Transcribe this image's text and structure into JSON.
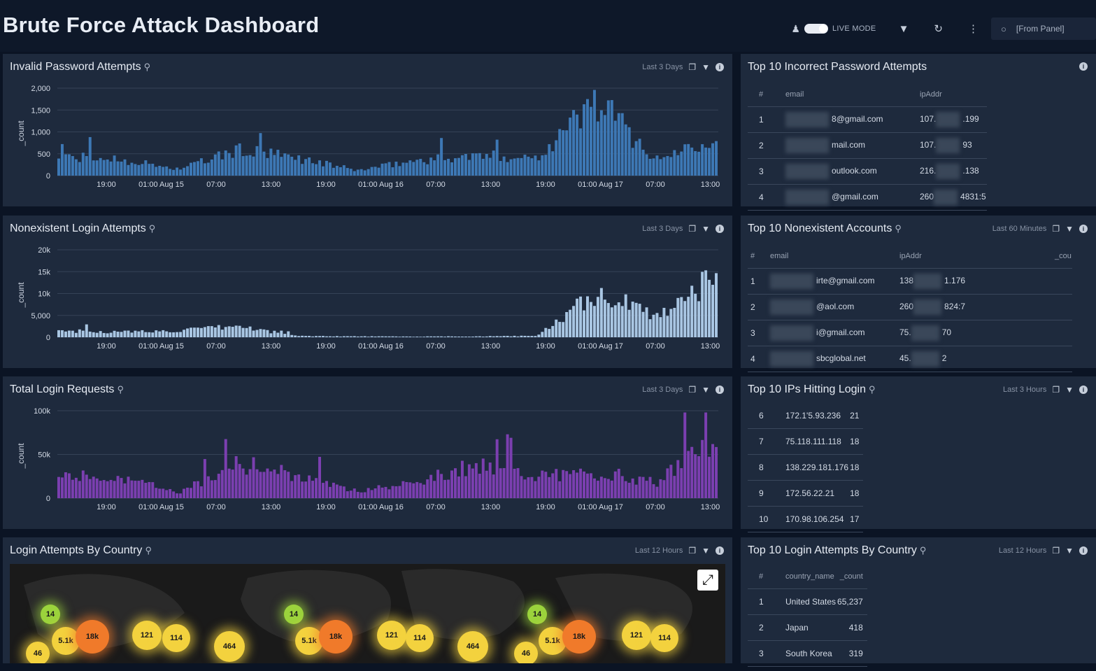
{
  "header": {
    "title": "Brute Force Attack Dashboard",
    "live_mode_label": "LIVE MODE",
    "from_panel": "[From Panel]"
  },
  "colors": {
    "blue": "#3d78b5",
    "lightblue": "#a9c6e3",
    "purple": "#7b3fb0",
    "bg": "#0b1424",
    "panel": "#1e2a3d"
  },
  "x_ticks": [
    "19:00",
    "01:00 Aug 15",
    "07:00",
    "13:00",
    "19:00",
    "01:00 Aug 16",
    "07:00",
    "13:00",
    "19:00",
    "01:00 Aug 17",
    "07:00",
    "13:00"
  ],
  "charts": {
    "invalid": {
      "title": "Invalid Password Attempts",
      "range": "Last 3 Days",
      "ylabel": "_count",
      "yticks": [
        "2,000",
        "1,500",
        "1,000",
        "500",
        "0"
      ]
    },
    "nonexistent": {
      "title": "Nonexistent Login Attempts",
      "range": "Last 3 Days",
      "ylabel": "_count",
      "yticks": [
        "20k",
        "15k",
        "10k",
        "5,000",
        "0"
      ]
    },
    "total": {
      "title": "Total Login Requests",
      "range": "Last 3 Days",
      "ylabel": "_count",
      "yticks": [
        "100k",
        "50k",
        "0"
      ]
    }
  },
  "chart_data": [
    {
      "type": "bar",
      "title": "Invalid Password Attempts",
      "ylabel": "_count",
      "ylim": [
        0,
        2000
      ],
      "x": [
        "19:00",
        "01:00 Aug 15",
        "07:00",
        "13:00",
        "19:00",
        "01:00 Aug 16",
        "07:00",
        "13:00",
        "19:00",
        "01:00 Aug 17",
        "07:00",
        "13:00"
      ],
      "values": [
        420,
        380,
        150,
        580,
        400,
        120,
        350,
        450,
        420,
        1750,
        350,
        950
      ]
    },
    {
      "type": "bar",
      "title": "Nonexistent Login Attempts",
      "ylabel": "_count",
      "ylim": [
        0,
        20000
      ],
      "x": [
        "19:00",
        "01:00 Aug 15",
        "07:00",
        "13:00",
        "19:00",
        "01:00 Aug 16",
        "07:00",
        "13:00",
        "19:00",
        "01:00 Aug 17",
        "07:00",
        "13:00"
      ],
      "values": [
        1500,
        1200,
        1500,
        2500,
        300,
        200,
        150,
        200,
        300,
        10000,
        5000,
        14000
      ]
    },
    {
      "type": "bar",
      "title": "Total Login Requests",
      "ylabel": "_count",
      "ylim": [
        0,
        100000
      ],
      "x": [
        "19:00",
        "01:00 Aug 15",
        "07:00",
        "13:00",
        "19:00",
        "01:00 Aug 16",
        "07:00",
        "13:00",
        "19:00",
        "01:00 Aug 17",
        "07:00",
        "13:00"
      ],
      "values": [
        28000,
        25000,
        6000,
        40000,
        26000,
        8000,
        20000,
        38000,
        27000,
        27000,
        18000,
        65000
      ]
    }
  ],
  "top_incorrect": {
    "title": "Top 10 Incorrect Password Attempts",
    "headers": [
      "#",
      "email",
      "ipAddr"
    ],
    "rows": [
      {
        "n": "1",
        "email": "8@gmail.com",
        "ip_a": "107.",
        "ip_b": ".199"
      },
      {
        "n": "2",
        "email": "mail.com",
        "ip_a": "107.",
        "ip_b": "93"
      },
      {
        "n": "3",
        "email": "outlook.com",
        "ip_a": "216.",
        "ip_b": ".138"
      },
      {
        "n": "4",
        "email": "@gmail.com",
        "ip_a": "260",
        "ip_b": "4831:5"
      }
    ]
  },
  "top_nonexistent": {
    "title": "Top 10 Nonexistent Accounts",
    "range": "Last 60 Minutes",
    "headers": [
      "#",
      "email",
      "ipAddr",
      "_cou"
    ],
    "rows": [
      {
        "n": "1",
        "email": "irte@gmail.com",
        "ip_a": "138",
        "ip_b": "1.176"
      },
      {
        "n": "2",
        "email": "@aol.com",
        "ip_a": "260",
        "ip_b": "824:7"
      },
      {
        "n": "3",
        "email": "i@gmail.com",
        "ip_a": "75.",
        "ip_b": "70"
      },
      {
        "n": "4",
        "email": "sbcglobal.net",
        "ip_a": "45.",
        "ip_b": "2"
      }
    ]
  },
  "top_ips": {
    "title": "Top 10 IPs Hitting Login",
    "range": "Last 3 Hours",
    "rows": [
      {
        "n": "6",
        "ip": "172.1'5.93.236",
        "count": "21"
      },
      {
        "n": "7",
        "ip": "75.118.111.118",
        "count": "18"
      },
      {
        "n": "8",
        "ip": "138.229.181.176",
        "count": "18"
      },
      {
        "n": "9",
        "ip": "172.56.22.21",
        "count": "18"
      },
      {
        "n": "10",
        "ip": "170.98.106.254",
        "count": "17"
      }
    ]
  },
  "map": {
    "title": "Login Attempts By Country",
    "range": "Last 12 Hours",
    "bubbles": [
      "14",
      "5.1k",
      "18k",
      "121",
      "114",
      "464",
      "46",
      "14",
      "5.1k",
      "18k",
      "121",
      "114",
      "464",
      "14",
      "5.1k",
      "18k",
      "121",
      "114",
      "46"
    ]
  },
  "top_country": {
    "title": "Top 10 Login Attempts By Country",
    "range": "Last 12 Hours",
    "headers": [
      "#",
      "country_name",
      "_count"
    ],
    "rows": [
      {
        "n": "1",
        "country": "United States",
        "count": "65,237"
      },
      {
        "n": "2",
        "country": "Japan",
        "count": "418"
      },
      {
        "n": "3",
        "country": "South Korea",
        "count": "319"
      }
    ]
  }
}
